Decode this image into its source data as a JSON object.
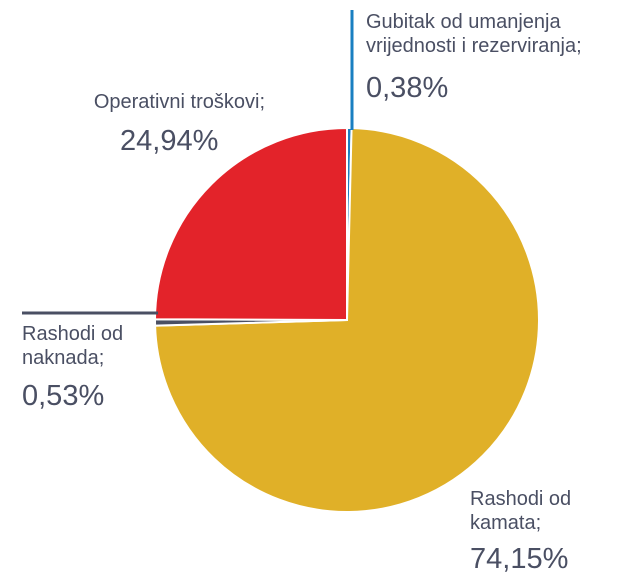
{
  "chart_data": {
    "type": "pie",
    "categories": [
      "Gubitak od umanjenja vrijednosti i rezerviranja;",
      "Rashodi od kamata;",
      "Rashodi od naknada;",
      "Operativni troškovi;"
    ],
    "values": [
      0.38,
      74.15,
      0.53,
      24.94
    ],
    "value_labels": [
      "0,38%",
      "74,15%",
      "0,53%",
      "24,94%"
    ],
    "colors": [
      "#1a7fc1",
      "#e0b028",
      "#4a4f63",
      "#e3232a"
    ]
  }
}
